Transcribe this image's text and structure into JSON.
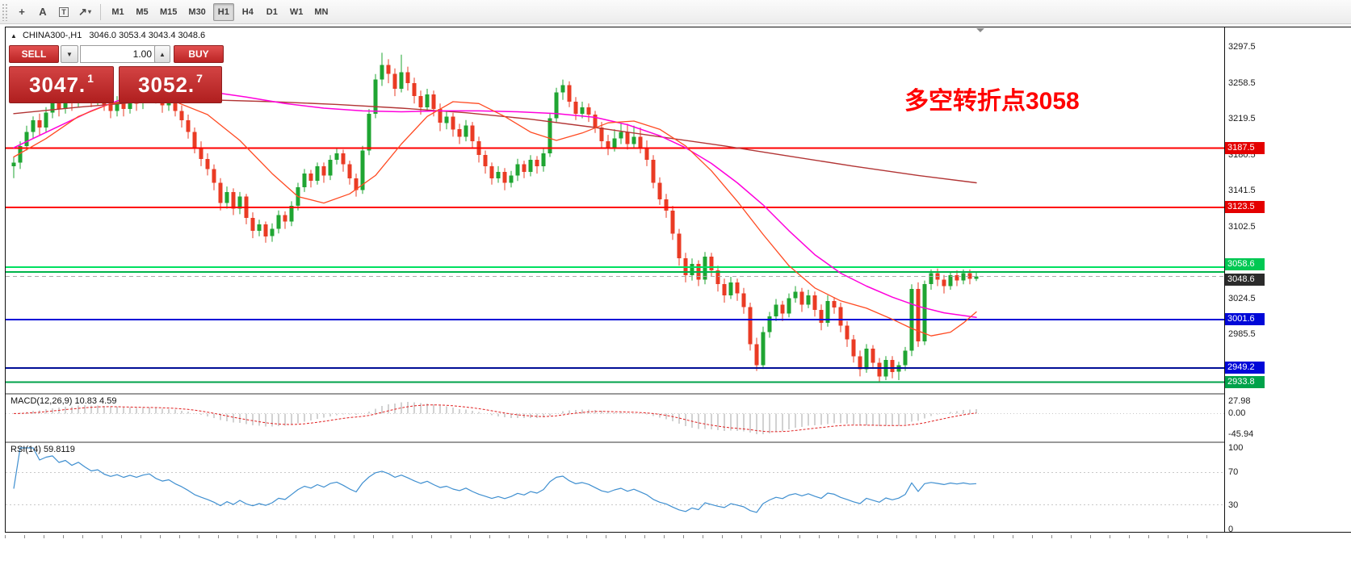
{
  "icons": {
    "caret_down": "▼",
    "caret_up": "▲",
    "collapse": "▲",
    "shapes_caret": "▾"
  },
  "toolbar": {
    "buttons": [
      {
        "name": "crosshair",
        "glyph": "+"
      },
      {
        "name": "text",
        "glyph": "A"
      },
      {
        "name": "text-label",
        "glyph": "T"
      },
      {
        "name": "shapes",
        "glyph": "↗"
      }
    ],
    "timeframes": [
      {
        "label": "M1",
        "active": false
      },
      {
        "label": "M5",
        "active": false
      },
      {
        "label": "M15",
        "active": false
      },
      {
        "label": "M30",
        "active": false
      },
      {
        "label": "H1",
        "active": true
      },
      {
        "label": "H4",
        "active": false
      },
      {
        "label": "D1",
        "active": false
      },
      {
        "label": "W1",
        "active": false
      },
      {
        "label": "MN",
        "active": false
      }
    ]
  },
  "header": {
    "collapse_icon": "▲",
    "title": "CHINA300-,H1",
    "ohlc": "3046.0 3053.4 3043.4 3048.6"
  },
  "one_click": {
    "sell_label": "SELL",
    "buy_label": "BUY",
    "volume": "1.00",
    "bid": {
      "main": "3047.",
      "pip": "1"
    },
    "ask": {
      "main": "3052.",
      "pip": "7"
    }
  },
  "annotation": {
    "text": "多空转折点3058",
    "color": "#ff0000"
  },
  "chart_data": {
    "type": "candlestick",
    "symbol": "CHINA300-",
    "timeframe": "H1",
    "up_color": "#1fa532",
    "down_color": "#ea3b24",
    "y_axis": {
      "range": [
        2922.0,
        3318.5
      ],
      "labels": [
        "3297.5",
        "3258.5",
        "3219.5",
        "3180.5",
        "3141.5",
        "3102.5",
        "3063.5",
        "3024.5",
        "2985.5",
        "2946.5"
      ]
    },
    "candles": [
      [
        3168,
        3178,
        3155,
        3172
      ],
      [
        3172,
        3195,
        3165,
        3190
      ],
      [
        3190,
        3212,
        3185,
        3205
      ],
      [
        3205,
        3222,
        3198,
        3218
      ],
      [
        3218,
        3225,
        3202,
        3210
      ],
      [
        3210,
        3232,
        3205,
        3226
      ],
      [
        3226,
        3245,
        3220,
        3238
      ],
      [
        3238,
        3242,
        3222,
        3230
      ],
      [
        3230,
        3250,
        3225,
        3244
      ],
      [
        3244,
        3252,
        3228,
        3236
      ],
      [
        3236,
        3268,
        3232,
        3260
      ],
      [
        3260,
        3266,
        3242,
        3250
      ],
      [
        3250,
        3256,
        3232,
        3240
      ],
      [
        3240,
        3254,
        3234,
        3248
      ],
      [
        3248,
        3252,
        3228,
        3235
      ],
      [
        3235,
        3242,
        3220,
        3228
      ],
      [
        3228,
        3244,
        3222,
        3238
      ],
      [
        3238,
        3243,
        3222,
        3230
      ],
      [
        3230,
        3248,
        3225,
        3242
      ],
      [
        3242,
        3247,
        3228,
        3236
      ],
      [
        3236,
        3254,
        3230,
        3248
      ],
      [
        3248,
        3262,
        3241,
        3255
      ],
      [
        3255,
        3260,
        3236,
        3242
      ],
      [
        3242,
        3248,
        3226,
        3234
      ],
      [
        3234,
        3246,
        3228,
        3240
      ],
      [
        3240,
        3245,
        3222,
        3228
      ],
      [
        3228,
        3234,
        3210,
        3218
      ],
      [
        3218,
        3224,
        3198,
        3205
      ],
      [
        3205,
        3210,
        3182,
        3188
      ],
      [
        3188,
        3195,
        3168,
        3176
      ],
      [
        3176,
        3182,
        3158,
        3165
      ],
      [
        3165,
        3170,
        3142,
        3150
      ],
      [
        3150,
        3155,
        3120,
        3128
      ],
      [
        3128,
        3146,
        3122,
        3140
      ],
      [
        3140,
        3144,
        3115,
        3122
      ],
      [
        3122,
        3140,
        3116,
        3135
      ],
      [
        3135,
        3138,
        3105,
        3112
      ],
      [
        3112,
        3118,
        3090,
        3098
      ],
      [
        3098,
        3110,
        3092,
        3105
      ],
      [
        3105,
        3108,
        3085,
        3092
      ],
      [
        3092,
        3106,
        3086,
        3100
      ],
      [
        3100,
        3120,
        3095,
        3115
      ],
      [
        3115,
        3119,
        3100,
        3108
      ],
      [
        3108,
        3130,
        3103,
        3125
      ],
      [
        3125,
        3150,
        3120,
        3145
      ],
      [
        3145,
        3165,
        3140,
        3160
      ],
      [
        3160,
        3164,
        3145,
        3152
      ],
      [
        3152,
        3172,
        3148,
        3168
      ],
      [
        3168,
        3172,
        3150,
        3158
      ],
      [
        3158,
        3180,
        3153,
        3175
      ],
      [
        3175,
        3188,
        3170,
        3182
      ],
      [
        3182,
        3186,
        3162,
        3170
      ],
      [
        3170,
        3174,
        3148,
        3155
      ],
      [
        3155,
        3160,
        3135,
        3142
      ],
      [
        3142,
        3190,
        3138,
        3185
      ],
      [
        3185,
        3230,
        3180,
        3225
      ],
      [
        3225,
        3268,
        3220,
        3262
      ],
      [
        3262,
        3291,
        3255,
        3278
      ],
      [
        3278,
        3284,
        3258,
        3268
      ],
      [
        3268,
        3274,
        3244,
        3252
      ],
      [
        3252,
        3289,
        3248,
        3270
      ],
      [
        3270,
        3276,
        3250,
        3258
      ],
      [
        3258,
        3264,
        3236,
        3244
      ],
      [
        3244,
        3250,
        3224,
        3232
      ],
      [
        3232,
        3252,
        3228,
        3246
      ],
      [
        3246,
        3250,
        3222,
        3230
      ],
      [
        3230,
        3236,
        3206,
        3215
      ],
      [
        3215,
        3228,
        3208,
        3222
      ],
      [
        3222,
        3226,
        3200,
        3208
      ],
      [
        3208,
        3214,
        3192,
        3200
      ],
      [
        3200,
        3218,
        3195,
        3212
      ],
      [
        3212,
        3216,
        3188,
        3195
      ],
      [
        3195,
        3200,
        3172,
        3180
      ],
      [
        3180,
        3185,
        3160,
        3168
      ],
      [
        3168,
        3172,
        3148,
        3155
      ],
      [
        3155,
        3168,
        3150,
        3162
      ],
      [
        3162,
        3166,
        3142,
        3150
      ],
      [
        3150,
        3163,
        3145,
        3158
      ],
      [
        3158,
        3176,
        3152,
        3170
      ],
      [
        3170,
        3174,
        3155,
        3162
      ],
      [
        3162,
        3180,
        3157,
        3175
      ],
      [
        3175,
        3179,
        3160,
        3168
      ],
      [
        3168,
        3187,
        3162,
        3182
      ],
      [
        3182,
        3226,
        3178,
        3220
      ],
      [
        3220,
        3253,
        3215,
        3248
      ],
      [
        3248,
        3262,
        3240,
        3256
      ],
      [
        3256,
        3260,
        3232,
        3238
      ],
      [
        3238,
        3243,
        3218,
        3225
      ],
      [
        3225,
        3238,
        3220,
        3232
      ],
      [
        3232,
        3236,
        3216,
        3224
      ],
      [
        3224,
        3228,
        3204,
        3210
      ],
      [
        3210,
        3216,
        3188,
        3195
      ],
      [
        3195,
        3202,
        3180,
        3188
      ],
      [
        3188,
        3208,
        3184,
        3198
      ],
      [
        3198,
        3215,
        3192,
        3205
      ],
      [
        3205,
        3214,
        3186,
        3192
      ],
      [
        3192,
        3212,
        3188,
        3200
      ],
      [
        3200,
        3210,
        3182,
        3188
      ],
      [
        3188,
        3196,
        3168,
        3175
      ],
      [
        3175,
        3180,
        3144,
        3150
      ],
      [
        3150,
        3156,
        3126,
        3132
      ],
      [
        3132,
        3138,
        3112,
        3120
      ],
      [
        3120,
        3125,
        3088,
        3095
      ],
      [
        3095,
        3100,
        3060,
        3068
      ],
      [
        3068,
        3074,
        3042,
        3050
      ],
      [
        3050,
        3068,
        3044,
        3062
      ],
      [
        3062,
        3066,
        3038,
        3045
      ],
      [
        3045,
        3075,
        3040,
        3070
      ],
      [
        3070,
        3074,
        3048,
        3055
      ],
      [
        3055,
        3060,
        3032,
        3040
      ],
      [
        3040,
        3046,
        3020,
        3028
      ],
      [
        3028,
        3048,
        3024,
        3042
      ],
      [
        3042,
        3046,
        3022,
        3030
      ],
      [
        3030,
        3036,
        3008,
        3015
      ],
      [
        3015,
        3020,
        2968,
        2975
      ],
      [
        2975,
        2982,
        2946,
        2952
      ],
      [
        2952,
        2994,
        2948,
        2988
      ],
      [
        2988,
        3010,
        2982,
        3005
      ],
      [
        3005,
        3024,
        3000,
        3018
      ],
      [
        3018,
        3022,
        3000,
        3008
      ],
      [
        3008,
        3030,
        3004,
        3025
      ],
      [
        3025,
        3038,
        3020,
        3032
      ],
      [
        3032,
        3036,
        3010,
        3018
      ],
      [
        3018,
        3034,
        3014,
        3028
      ],
      [
        3028,
        3032,
        3005,
        3012
      ],
      [
        3012,
        3018,
        2990,
        2998
      ],
      [
        2998,
        3028,
        2994,
        3022
      ],
      [
        3022,
        3026,
        3008,
        3015
      ],
      [
        3015,
        3020,
        2988,
        2995
      ],
      [
        2995,
        3000,
        2972,
        2980
      ],
      [
        2980,
        2985,
        2955,
        2962
      ],
      [
        2962,
        2968,
        2940,
        2948
      ],
      [
        2948,
        2975,
        2944,
        2970
      ],
      [
        2970,
        2974,
        2948,
        2955
      ],
      [
        2955,
        2960,
        2933.8,
        2940
      ],
      [
        2940,
        2962,
        2936,
        2958
      ],
      [
        2958,
        2962,
        2938,
        2945
      ],
      [
        2945,
        2956,
        2936,
        2952
      ],
      [
        2952,
        2972,
        2946,
        2968
      ],
      [
        2968,
        3040,
        2962,
        3035
      ],
      [
        3035,
        3042,
        2972,
        2978
      ],
      [
        2978,
        3044,
        2974,
        3040
      ],
      [
        3040,
        3056,
        3034,
        3052
      ],
      [
        3052,
        3057,
        3038,
        3045
      ],
      [
        3045,
        3050,
        3030,
        3038
      ],
      [
        3038,
        3054,
        3034,
        3050
      ],
      [
        3050,
        3055,
        3038,
        3044
      ],
      [
        3044,
        3056,
        3040,
        3052
      ],
      [
        3052,
        3056,
        3040,
        3046
      ],
      [
        3046,
        3053.4,
        3043.4,
        3048.6
      ]
    ],
    "overlays": [
      {
        "name": "ma-long",
        "color": "#b23535",
        "width": 1.4,
        "points": [
          [
            0,
            3225
          ],
          [
            10,
            3232
          ],
          [
            20,
            3238
          ],
          [
            30,
            3240
          ],
          [
            40,
            3238
          ],
          [
            50,
            3235
          ],
          [
            60,
            3231
          ],
          [
            70,
            3226
          ],
          [
            80,
            3219
          ],
          [
            90,
            3210
          ],
          [
            100,
            3200
          ],
          [
            110,
            3190
          ],
          [
            120,
            3179
          ],
          [
            130,
            3168
          ],
          [
            140,
            3158
          ],
          [
            149,
            3150
          ]
        ]
      },
      {
        "name": "ma-mid",
        "color": "#ff00dc",
        "width": 1.5,
        "points": [
          [
            0,
            3188
          ],
          [
            6,
            3208
          ],
          [
            12,
            3228
          ],
          [
            18,
            3244
          ],
          [
            24,
            3251
          ],
          [
            30,
            3249
          ],
          [
            36,
            3243
          ],
          [
            42,
            3236
          ],
          [
            48,
            3231
          ],
          [
            54,
            3228
          ],
          [
            60,
            3227
          ],
          [
            66,
            3228
          ],
          [
            72,
            3228
          ],
          [
            78,
            3227
          ],
          [
            84,
            3225
          ],
          [
            90,
            3221
          ],
          [
            95,
            3213
          ],
          [
            100,
            3201
          ],
          [
            104,
            3188
          ],
          [
            108,
            3171
          ],
          [
            112,
            3150
          ],
          [
            116,
            3126
          ],
          [
            120,
            3098
          ],
          [
            124,
            3072
          ],
          [
            128,
            3052
          ],
          [
            132,
            3038
          ],
          [
            136,
            3026
          ],
          [
            140,
            3016
          ],
          [
            144,
            3009
          ],
          [
            149,
            3004
          ]
        ]
      },
      {
        "name": "ma-fast",
        "color": "#ff4a22",
        "width": 1.3,
        "points": [
          [
            0,
            3178
          ],
          [
            5,
            3198
          ],
          [
            10,
            3222
          ],
          [
            15,
            3236
          ],
          [
            20,
            3240
          ],
          [
            25,
            3238
          ],
          [
            30,
            3224
          ],
          [
            35,
            3196
          ],
          [
            40,
            3160
          ],
          [
            44,
            3135
          ],
          [
            48,
            3128
          ],
          [
            52,
            3138
          ],
          [
            56,
            3158
          ],
          [
            60,
            3192
          ],
          [
            64,
            3222
          ],
          [
            68,
            3238
          ],
          [
            72,
            3236
          ],
          [
            76,
            3222
          ],
          [
            80,
            3205
          ],
          [
            84,
            3196
          ],
          [
            88,
            3204
          ],
          [
            92,
            3215
          ],
          [
            96,
            3217
          ],
          [
            100,
            3208
          ],
          [
            104,
            3190
          ],
          [
            108,
            3163
          ],
          [
            112,
            3130
          ],
          [
            116,
            3094
          ],
          [
            120,
            3060
          ],
          [
            124,
            3036
          ],
          [
            128,
            3022
          ],
          [
            132,
            3014
          ],
          [
            136,
            3002
          ],
          [
            139,
            2992
          ],
          [
            142,
            2984
          ],
          [
            145,
            2988
          ],
          [
            147,
            2998
          ],
          [
            149,
            3010
          ]
        ]
      }
    ],
    "hlines": [
      {
        "price": 3187.5,
        "color": "#ff0000",
        "width": 2,
        "style": "solid",
        "badge": "3187.5",
        "badge_bg": "#e40000"
      },
      {
        "price": 3123.5,
        "color": "#ff0000",
        "width": 2,
        "style": "solid",
        "badge": "3123.5",
        "badge_bg": "#e40000"
      },
      {
        "price": 3058.6,
        "color": "#00e060",
        "width": 2,
        "style": "solid",
        "badge": "3058.6",
        "badge_bg": "#00c853",
        "badge_dy": -3
      },
      {
        "price": 3053.5,
        "color": "#00b44a",
        "width": 2,
        "style": "solid",
        "badge": null
      },
      {
        "price": 3048.6,
        "color": "#aaaaaa",
        "width": 1,
        "style": "dash",
        "badge": "3048.6",
        "badge_bg": "#2b2b2b",
        "badge_dy": 5
      },
      {
        "price": 3001.6,
        "color": "#0008d8",
        "width": 2,
        "style": "solid",
        "badge": "3001.6",
        "badge_bg": "#0008d8"
      },
      {
        "price": 2949.2,
        "color": "#000f96",
        "width": 2,
        "style": "solid",
        "badge": "2949.2",
        "badge_bg": "#0008d8"
      },
      {
        "price": 2933.8,
        "color": "#00a24a",
        "width": 2,
        "style": "solid",
        "badge": "2933.8",
        "badge_bg": "#00a24a"
      }
    ]
  },
  "indicators": {
    "macd": {
      "label": "MACD(12,26,9) 10.83 4.59",
      "params": {
        "fast": 12,
        "slow": 26,
        "signal": 9
      },
      "current_main": 10.83,
      "current_signal": 4.59,
      "axis": [
        "27.98",
        "0.00",
        "-45.94"
      ],
      "range": [
        -62,
        42
      ]
    },
    "rsi": {
      "label": "RSI(14) 59.8119",
      "period": 14,
      "current": 59.8119,
      "axis": [
        "100",
        "70",
        "30",
        "0"
      ],
      "levels": [
        70,
        30
      ]
    }
  }
}
